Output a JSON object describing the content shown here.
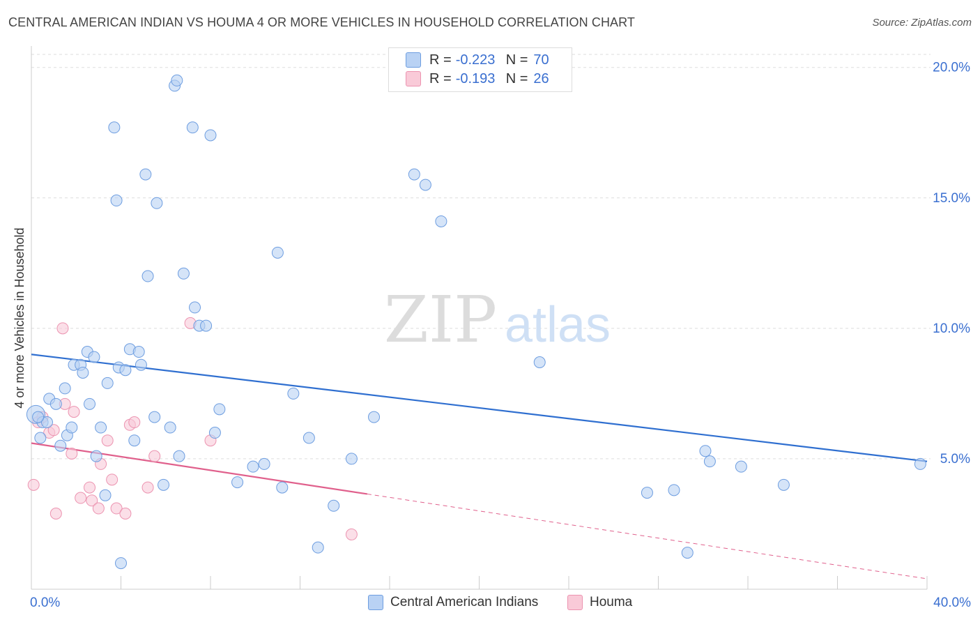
{
  "title": "CENTRAL AMERICAN INDIAN VS HOUMA 4 OR MORE VEHICLES IN HOUSEHOLD CORRELATION CHART",
  "source": "Source: ZipAtlas.com",
  "watermark": {
    "zip": "ZIP",
    "atlas": "atlas"
  },
  "colors": {
    "blue_fill": "#b9d2f4",
    "blue_stroke": "#6d9de0",
    "blue_line": "#2f6fd0",
    "pink_fill": "#f9cad8",
    "pink_stroke": "#ec93b0",
    "pink_line": "#e0608c",
    "grid": "#dedede",
    "tick_label": "#3a6fd0"
  },
  "legend": {
    "rows": [
      {
        "r_label": "R =",
        "r_value": "-0.223",
        "n_label": "N =",
        "n_value": "70"
      },
      {
        "r_label": "R =",
        "r_value": "-0.193",
        "n_label": "N =",
        "n_value": "26"
      }
    ]
  },
  "bottom_legend": [
    "Central American Indians",
    "Houma"
  ],
  "chart_data": {
    "type": "scatter",
    "title": "CENTRAL AMERICAN INDIAN VS HOUMA 4 OR MORE VEHICLES IN HOUSEHOLD CORRELATION CHART",
    "xlabel": "",
    "ylabel": "4 or more Vehicles in Household",
    "xlim": [
      0,
      40
    ],
    "ylim": [
      0,
      20.5
    ],
    "x_tick_labels": [
      "0.0%",
      "40.0%"
    ],
    "y_ticks": [
      5,
      10,
      15,
      20
    ],
    "y_tick_labels": [
      "5.0%",
      "10.0%",
      "15.0%",
      "20.0%"
    ],
    "grid": true,
    "series": [
      {
        "name": "Central American Indians",
        "r": -0.223,
        "n": 70,
        "trend": {
          "x": [
            0,
            40
          ],
          "y": [
            9.0,
            4.9
          ],
          "dashed_from": null
        },
        "points": [
          {
            "x": 0.2,
            "y": 6.7,
            "big": true
          },
          {
            "x": 0.4,
            "y": 5.8
          },
          {
            "x": 0.5,
            "y": 6.4
          },
          {
            "x": 0.7,
            "y": 6.4
          },
          {
            "x": 0.8,
            "y": 7.3
          },
          {
            "x": 1.1,
            "y": 7.1
          },
          {
            "x": 1.3,
            "y": 5.5
          },
          {
            "x": 1.5,
            "y": 7.7
          },
          {
            "x": 1.6,
            "y": 5.9
          },
          {
            "x": 1.8,
            "y": 6.2
          },
          {
            "x": 1.9,
            "y": 8.6
          },
          {
            "x": 2.2,
            "y": 8.6
          },
          {
            "x": 2.3,
            "y": 8.3
          },
          {
            "x": 2.5,
            "y": 9.1
          },
          {
            "x": 2.6,
            "y": 7.1
          },
          {
            "x": 2.8,
            "y": 8.9
          },
          {
            "x": 2.9,
            "y": 5.1
          },
          {
            "x": 3.1,
            "y": 6.2
          },
          {
            "x": 3.3,
            "y": 3.6
          },
          {
            "x": 3.4,
            "y": 7.9
          },
          {
            "x": 3.7,
            "y": 17.7
          },
          {
            "x": 3.8,
            "y": 14.9
          },
          {
            "x": 3.9,
            "y": 8.5
          },
          {
            "x": 4.0,
            "y": 1.0
          },
          {
            "x": 4.2,
            "y": 8.4
          },
          {
            "x": 4.4,
            "y": 9.2
          },
          {
            "x": 4.6,
            "y": 5.7
          },
          {
            "x": 4.8,
            "y": 9.1
          },
          {
            "x": 4.9,
            "y": 8.6
          },
          {
            "x": 5.1,
            "y": 15.9
          },
          {
            "x": 5.2,
            "y": 12.0
          },
          {
            "x": 5.5,
            "y": 6.6
          },
          {
            "x": 5.6,
            "y": 14.8
          },
          {
            "x": 5.9,
            "y": 4.0
          },
          {
            "x": 6.2,
            "y": 6.2
          },
          {
            "x": 6.4,
            "y": 19.3
          },
          {
            "x": 6.5,
            "y": 19.5
          },
          {
            "x": 6.6,
            "y": 5.1
          },
          {
            "x": 6.8,
            "y": 12.1
          },
          {
            "x": 7.2,
            "y": 17.7
          },
          {
            "x": 7.3,
            "y": 10.8
          },
          {
            "x": 7.5,
            "y": 10.1
          },
          {
            "x": 7.8,
            "y": 10.1
          },
          {
            "x": 8.0,
            "y": 17.4
          },
          {
            "x": 8.2,
            "y": 6.0
          },
          {
            "x": 8.4,
            "y": 6.9
          },
          {
            "x": 9.2,
            "y": 4.1
          },
          {
            "x": 9.9,
            "y": 4.7
          },
          {
            "x": 10.4,
            "y": 4.8
          },
          {
            "x": 11.0,
            "y": 12.9
          },
          {
            "x": 11.2,
            "y": 3.9
          },
          {
            "x": 11.7,
            "y": 7.5
          },
          {
            "x": 12.4,
            "y": 5.8
          },
          {
            "x": 12.8,
            "y": 1.6
          },
          {
            "x": 13.5,
            "y": 3.2
          },
          {
            "x": 14.3,
            "y": 5.0
          },
          {
            "x": 15.3,
            "y": 6.6
          },
          {
            "x": 17.1,
            "y": 15.9
          },
          {
            "x": 17.6,
            "y": 15.5
          },
          {
            "x": 18.3,
            "y": 14.1
          },
          {
            "x": 22.7,
            "y": 8.7
          },
          {
            "x": 27.5,
            "y": 3.7
          },
          {
            "x": 28.7,
            "y": 3.8
          },
          {
            "x": 29.3,
            "y": 1.4
          },
          {
            "x": 30.1,
            "y": 5.3
          },
          {
            "x": 30.3,
            "y": 4.9
          },
          {
            "x": 31.7,
            "y": 4.7
          },
          {
            "x": 33.6,
            "y": 4.0
          },
          {
            "x": 39.7,
            "y": 4.8
          },
          {
            "x": 0.3,
            "y": 6.6
          }
        ]
      },
      {
        "name": "Houma",
        "r": -0.193,
        "n": 26,
        "trend": {
          "x": [
            0,
            40
          ],
          "y": [
            5.6,
            0.4
          ],
          "dashed_from": 15.0
        },
        "points": [
          {
            "x": 0.1,
            "y": 4.0
          },
          {
            "x": 0.3,
            "y": 6.4
          },
          {
            "x": 0.5,
            "y": 6.6
          },
          {
            "x": 0.8,
            "y": 6.0
          },
          {
            "x": 1.0,
            "y": 6.1
          },
          {
            "x": 1.1,
            "y": 2.9
          },
          {
            "x": 1.4,
            "y": 10.0
          },
          {
            "x": 1.5,
            "y": 7.1
          },
          {
            "x": 1.8,
            "y": 5.2
          },
          {
            "x": 1.9,
            "y": 6.8
          },
          {
            "x": 2.2,
            "y": 3.5
          },
          {
            "x": 2.6,
            "y": 3.9
          },
          {
            "x": 2.7,
            "y": 3.4
          },
          {
            "x": 3.0,
            "y": 3.1
          },
          {
            "x": 3.1,
            "y": 4.8
          },
          {
            "x": 3.4,
            "y": 5.7
          },
          {
            "x": 3.6,
            "y": 4.2
          },
          {
            "x": 3.8,
            "y": 3.1
          },
          {
            "x": 4.2,
            "y": 2.9
          },
          {
            "x": 4.4,
            "y": 6.3
          },
          {
            "x": 4.6,
            "y": 6.4
          },
          {
            "x": 5.2,
            "y": 3.9
          },
          {
            "x": 5.5,
            "y": 5.1
          },
          {
            "x": 7.1,
            "y": 10.2
          },
          {
            "x": 8.0,
            "y": 5.7
          },
          {
            "x": 14.3,
            "y": 2.1
          }
        ]
      }
    ]
  }
}
